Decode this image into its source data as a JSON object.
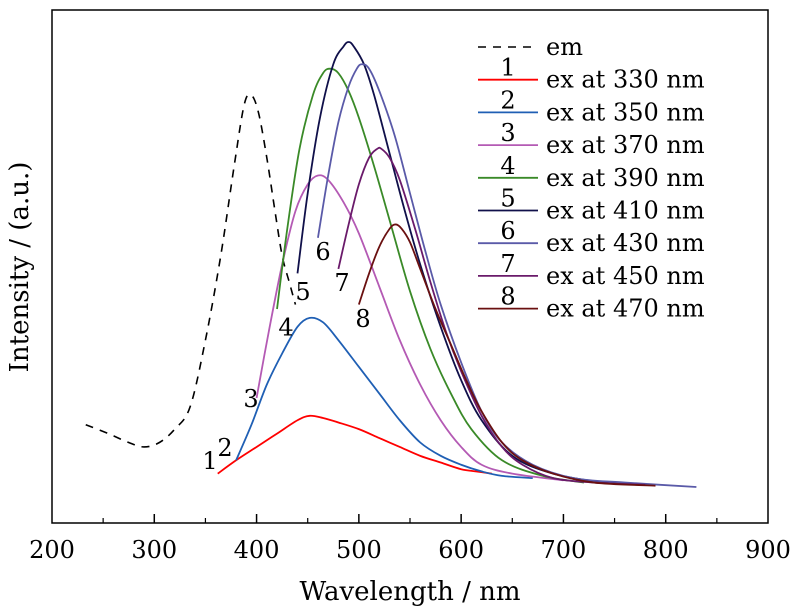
{
  "chart_data": {
    "type": "line",
    "xlabel": "Wavelength / nm",
    "ylabel": "Intensity / (a.u.)",
    "xlim": [
      200,
      900
    ],
    "ylim": [
      0,
      1
    ],
    "xticks": [
      "200",
      "300",
      "400",
      "500",
      "600",
      "700",
      "800",
      "900"
    ],
    "legend_placement": "top-right",
    "series": [
      {
        "key": "em",
        "name": "em",
        "marker": "",
        "color": "#000000",
        "dashed": true,
        "label_num": "",
        "label_at": null,
        "x": [
          233,
          255,
          275,
          290,
          305,
          320,
          335,
          350,
          365,
          378,
          388,
          395,
          402,
          410,
          418,
          425,
          432,
          438
        ],
        "y": [
          0.14,
          0.12,
          0.1,
          0.09,
          0.1,
          0.13,
          0.18,
          0.33,
          0.52,
          0.72,
          0.86,
          0.88,
          0.84,
          0.74,
          0.62,
          0.52,
          0.46,
          0.41
        ]
      },
      {
        "key": "ex330",
        "name": "ex at 330 nm",
        "marker": "1",
        "color": "#ff0000",
        "dashed": false,
        "label_num": "1",
        "label_at": [
          210,
          0.04
        ],
        "x": [
          362,
          380,
          400,
          420,
          440,
          452,
          465,
          480,
          500,
          520,
          540,
          560,
          580,
          600,
          615,
          630
        ],
        "y": [
          0.03,
          0.06,
          0.09,
          0.12,
          0.15,
          0.16,
          0.155,
          0.145,
          0.13,
          0.11,
          0.09,
          0.07,
          0.055,
          0.04,
          0.035,
          0.03
        ]
      },
      {
        "key": "ex350",
        "name": "ex at 350 nm",
        "marker": "2",
        "color": "#1f5fb4",
        "dashed": false,
        "label_num": "2",
        "label_at": [
          225,
          0.07
        ],
        "x": [
          380,
          395,
          410,
          425,
          440,
          452,
          465,
          480,
          500,
          520,
          540,
          560,
          580,
          600,
          620,
          640,
          670
        ],
        "y": [
          0.06,
          0.14,
          0.23,
          0.3,
          0.36,
          0.38,
          0.37,
          0.33,
          0.27,
          0.21,
          0.15,
          0.1,
          0.07,
          0.05,
          0.035,
          0.025,
          0.02
        ]
      },
      {
        "key": "ex370",
        "name": "ex at 370 nm",
        "marker": "3",
        "color": "#b45ab4",
        "dashed": false,
        "label_num": "3",
        "label_at": [
          251,
          0.18
        ],
        "x": [
          400,
          412,
          425,
          438,
          450,
          460,
          470,
          485,
          500,
          520,
          540,
          560,
          580,
          600,
          620,
          650,
          700
        ],
        "y": [
          0.2,
          0.35,
          0.5,
          0.62,
          0.68,
          0.7,
          0.69,
          0.64,
          0.57,
          0.45,
          0.33,
          0.23,
          0.15,
          0.09,
          0.05,
          0.03,
          0.015
        ]
      },
      {
        "key": "ex390",
        "name": "ex at 390 nm",
        "marker": "4",
        "color": "#3a8a28",
        "dashed": false,
        "label_num": "4",
        "label_at": [
          286,
          0.34
        ],
        "x": [
          420,
          430,
          442,
          455,
          465,
          472,
          480,
          490,
          500,
          515,
          530,
          550,
          570,
          590,
          610,
          640,
          680,
          720
        ],
        "y": [
          0.4,
          0.58,
          0.76,
          0.88,
          0.93,
          0.94,
          0.93,
          0.89,
          0.83,
          0.72,
          0.6,
          0.44,
          0.31,
          0.21,
          0.13,
          0.06,
          0.025,
          0.01
        ]
      },
      {
        "key": "ex410",
        "name": "ex at 410 nm",
        "marker": "5",
        "color": "#10104a",
        "dashed": false,
        "label_num": "5",
        "label_at": [
          303,
          0.42
        ],
        "x": [
          440,
          450,
          462,
          475,
          485,
          490,
          495,
          505,
          515,
          530,
          545,
          560,
          580,
          600,
          620,
          650,
          690,
          740,
          780
        ],
        "y": [
          0.48,
          0.66,
          0.83,
          0.95,
          0.99,
          1.0,
          0.99,
          0.95,
          0.88,
          0.75,
          0.62,
          0.5,
          0.36,
          0.24,
          0.15,
          0.07,
          0.03,
          0.01,
          0.005
        ]
      },
      {
        "key": "ex430",
        "name": "ex at 430 nm",
        "marker": "6",
        "color": "#5a5aa8",
        "dashed": false,
        "label_num": "6",
        "label_at": [
          323,
          0.51
        ],
        "x": [
          460,
          470,
          480,
          490,
          498,
          503,
          510,
          520,
          535,
          550,
          565,
          580,
          600,
          620,
          640,
          670,
          710,
          760,
          830
        ],
        "y": [
          0.56,
          0.7,
          0.82,
          0.9,
          0.94,
          0.95,
          0.94,
          0.89,
          0.79,
          0.66,
          0.53,
          0.41,
          0.28,
          0.17,
          0.1,
          0.05,
          0.02,
          0.01,
          0.0
        ]
      },
      {
        "key": "ex450",
        "name": "ex at 450 nm",
        "marker": "7",
        "color": "#6a1a6a",
        "dashed": false,
        "label_num": "7",
        "label_at": [
          342,
          0.44
        ],
        "x": [
          480,
          490,
          500,
          510,
          518,
          522,
          530,
          540,
          555,
          570,
          585,
          600,
          620,
          640,
          660,
          690,
          730,
          780
        ],
        "y": [
          0.49,
          0.59,
          0.68,
          0.74,
          0.76,
          0.76,
          0.74,
          0.69,
          0.58,
          0.46,
          0.35,
          0.26,
          0.16,
          0.09,
          0.05,
          0.02,
          0.01,
          0.005
        ]
      },
      {
        "key": "ex470",
        "name": "ex at 470 nm",
        "marker": "8",
        "color": "#6a1010",
        "dashed": false,
        "label_num": "8",
        "label_at": [
          363,
          0.36
        ],
        "x": [
          500,
          510,
          520,
          530,
          536,
          542,
          550,
          560,
          575,
          590,
          605,
          620,
          640,
          660,
          690,
          730,
          790
        ],
        "y": [
          0.41,
          0.48,
          0.54,
          0.58,
          0.59,
          0.58,
          0.55,
          0.49,
          0.4,
          0.32,
          0.24,
          0.17,
          0.1,
          0.06,
          0.03,
          0.01,
          0.003
        ]
      }
    ]
  }
}
